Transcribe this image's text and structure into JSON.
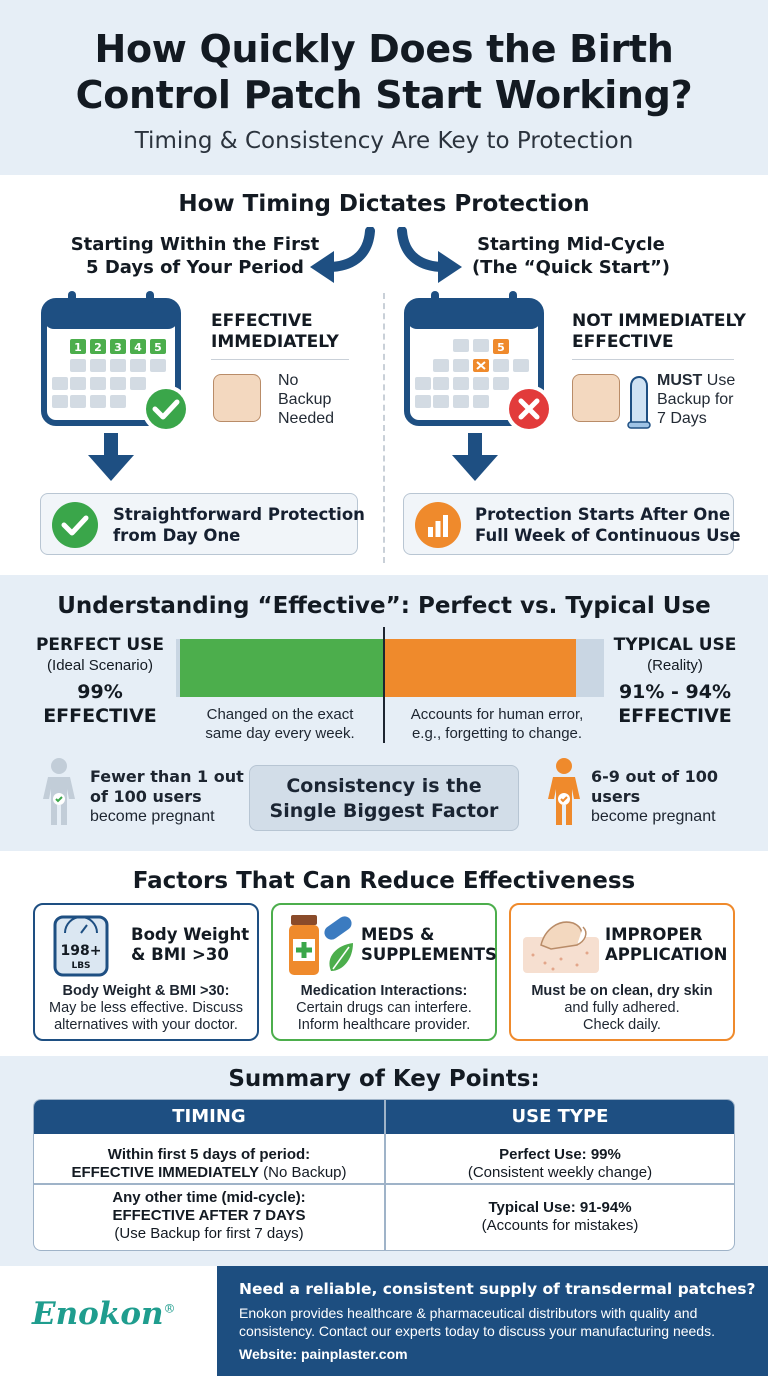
{
  "header": {
    "title_line1": "How Quickly Does the Birth",
    "title_line2": "Control Patch Start Working?",
    "subtitle": "Timing & Consistency Are Key to Protection"
  },
  "timing": {
    "title": "How Timing Dictates Protection",
    "left": {
      "title_line1": "Starting Within the First",
      "title_line2": "5 Days of Your Period",
      "calendar_days": [
        "1",
        "2",
        "3",
        "4",
        "5"
      ],
      "status_line1": "EFFECTIVE",
      "status_line2": "IMMEDIATELY",
      "note_line1": "No",
      "note_line2": "Backup",
      "note_line3": "Needed",
      "result_line1": "Straightforward Protection",
      "result_line2": "from Day One"
    },
    "right": {
      "title_line1": "Starting Mid-Cycle",
      "title_line2": "(The “Quick Start”)",
      "calendar_day": "5",
      "status_line1": "NOT IMMEDIATELY",
      "status_line2": "EFFECTIVE",
      "note_bold": "MUST",
      "note_line1_rest": " Use",
      "note_line2": "Backup for",
      "note_line3": "7 Days",
      "result_line1": "Protection Starts After One",
      "result_line2": "Full Week of Continuous Use"
    }
  },
  "effective": {
    "title": "Understanding “Effective”: Perfect vs. Typical Use",
    "perfect": {
      "label": "PERFECT USE",
      "sub": "(Ideal Scenario)",
      "pct": "99%",
      "eff": "EFFECTIVE",
      "bar_note_line1": "Changed on the exact",
      "bar_note_line2": "same day every week.",
      "preg_line1": "Fewer than 1 out",
      "preg_line2": "of 100 users",
      "preg_line3": "become pregnant",
      "effectiveness_value": 0.99
    },
    "typical": {
      "label": "TYPICAL USE",
      "sub": "(Reality)",
      "pct": "91% - 94%",
      "eff": "EFFECTIVE",
      "bar_note_line1": "Accounts for human error,",
      "bar_note_line2": "e.g., forgetting to change.",
      "preg_line1": "6-9 out of 100",
      "preg_line2": "users",
      "preg_line3": "become pregnant",
      "effectiveness_value": 0.93
    },
    "center_line1": "Consistency is the",
    "center_line2": "Single Biggest Factor",
    "colors": {
      "perfect": "#4cae4c",
      "typical": "#ef8a2c"
    }
  },
  "factors": {
    "title": "Factors That Can Reduce Effectiveness",
    "weight": {
      "scale_top": "198+",
      "scale_unit": "LBS",
      "head_line1": "Body Weight",
      "head_line2": "& BMI >30",
      "body_bold": "Body Weight & BMI >30:",
      "body_line1": "May be less effective. Discuss",
      "body_line2": "alternatives with your doctor.",
      "color": "#1e4f82"
    },
    "meds": {
      "head_line1": "MEDS &",
      "head_line2": "SUPPLEMENTS",
      "body_bold": "Medication Interactions:",
      "body_line1": "Certain drugs can interfere.",
      "body_line2": "Inform healthcare provider.",
      "color": "#4cae4c"
    },
    "application": {
      "head_line1": "IMPROPER",
      "head_line2": "APPLICATION",
      "body_bold": "Must be on clean, dry skin",
      "body_line1": "and fully adhered.",
      "body_line2": "Check daily.",
      "color": "#ef8a2c"
    }
  },
  "summary": {
    "title": "Summary of Key Points:",
    "col1": "TIMING",
    "col2": "USE TYPE",
    "r1c1_line1": "Within first 5 days of period:",
    "r1c1_bold": "EFFECTIVE IMMEDIATELY",
    "r1c1_rest": " (No Backup)",
    "r1c2_line1": "Perfect Use: 99%",
    "r1c2_line2": "(Consistent weekly change)",
    "r2c1_line1": "Any other time (mid-cycle):",
    "r2c1_line2": "EFFECTIVE AFTER 7 DAYS",
    "r2c1_line3": "(Use Backup for first 7 days)",
    "r2c2_line1": "Typical Use: 91-94%",
    "r2c2_line2": "(Accounts for mistakes)"
  },
  "footer": {
    "logo": "Enokon",
    "logo_mark": "®",
    "headline": "Need a reliable, consistent supply of transdermal patches?",
    "body_line1": "Enokon provides healthcare & pharmaceutical distributors with quality and",
    "body_line2": "consistency. Contact our experts today to discuss your manufacturing needs.",
    "website": "Website: painplaster.com"
  }
}
